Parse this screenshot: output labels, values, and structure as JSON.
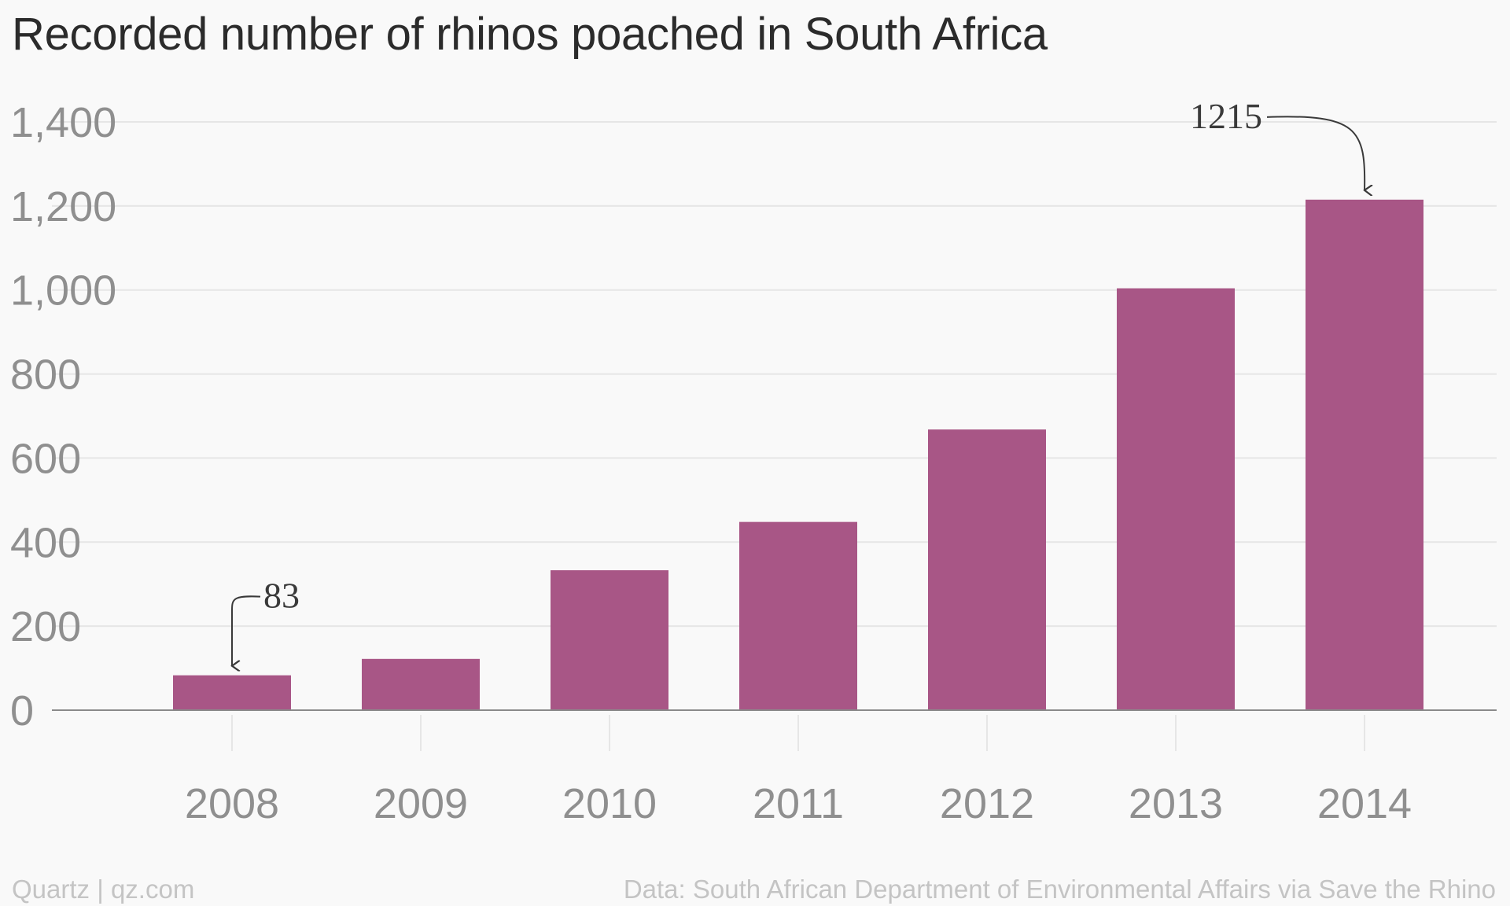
{
  "chart_data": {
    "type": "bar",
    "title": "Recorded number of rhinos poached in South Africa",
    "categories": [
      "2008",
      "2009",
      "2010",
      "2011",
      "2012",
      "2013",
      "2014"
    ],
    "values": [
      83,
      122,
      333,
      448,
      668,
      1004,
      1215
    ],
    "xlabel": "",
    "ylabel": "",
    "ylim": [
      0,
      1400
    ],
    "yticks": [
      0,
      200,
      400,
      600,
      800,
      1000,
      1200,
      1400
    ],
    "ytick_labels": [
      "0",
      "200",
      "400",
      "600",
      "800",
      "1,000",
      "1,200",
      "1,400"
    ],
    "grid": true,
    "bar_color": "#a85686",
    "annotations": [
      {
        "category": "2008",
        "text": "83"
      },
      {
        "category": "2014",
        "text": "1215"
      }
    ]
  },
  "footer": {
    "source_left": "Quartz | qz.com",
    "source_right": "Data: South African Department of Environmental Affairs via Save the Rhino"
  }
}
